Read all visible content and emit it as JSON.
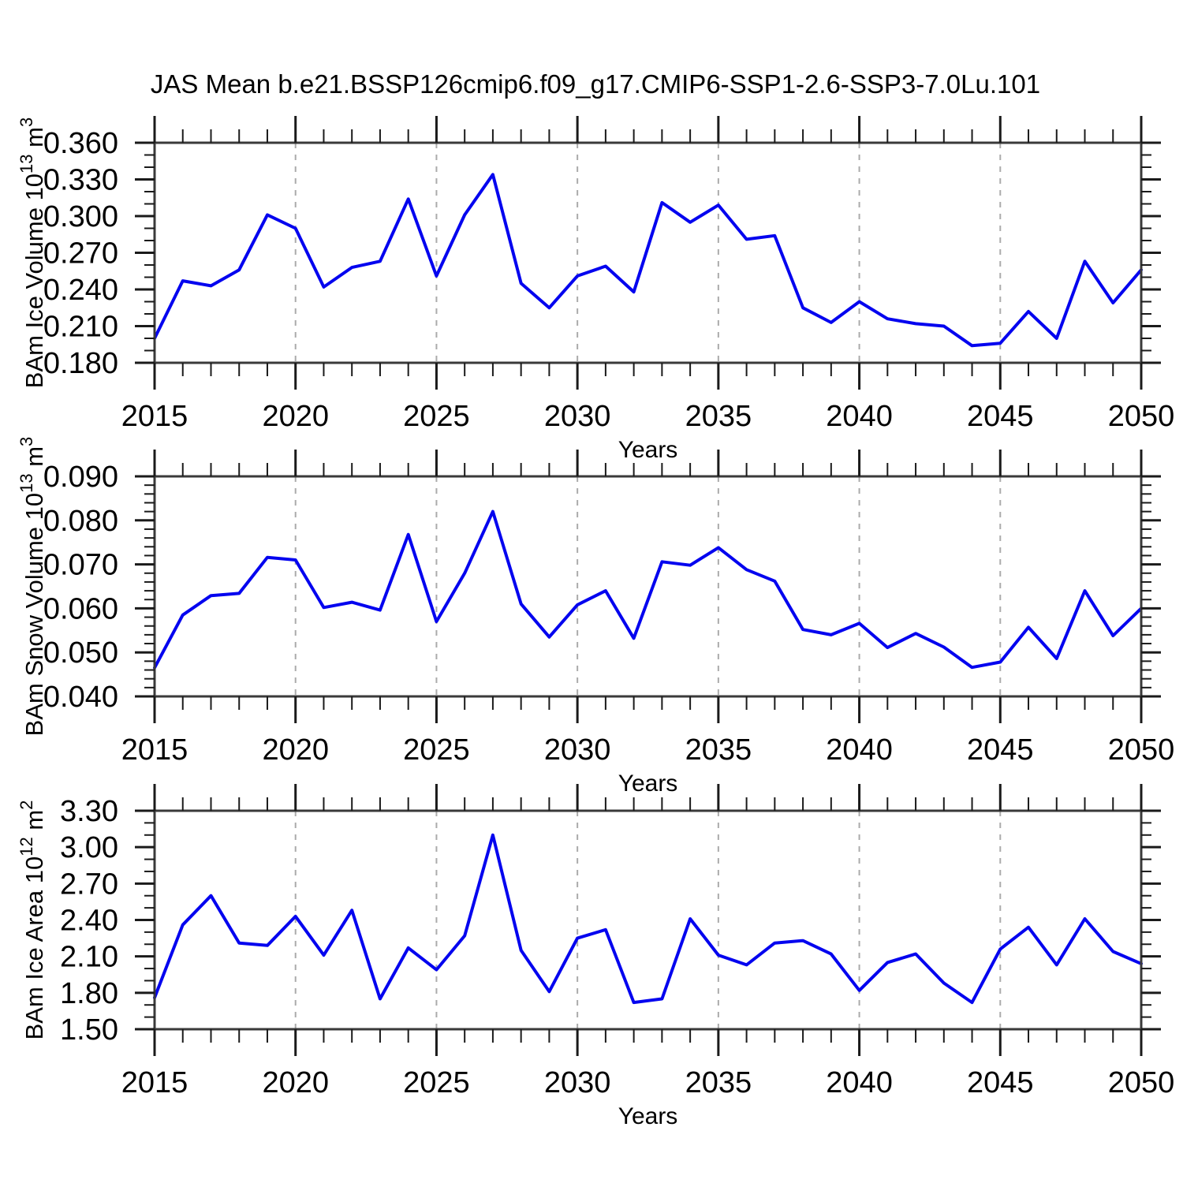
{
  "title": "JAS Mean b.e21.BSSP126cmip6.f09_g17.CMIP6-SSP1-2.6-SSP3-7.0Lu.101",
  "line_color": "#0404ef",
  "frame_color": "#3a3a3a",
  "tick_color": "#1a1a1a",
  "gridline_color": "#ababab",
  "chart_data": [
    {
      "type": "line",
      "name": "bam-ice-volume",
      "ylabel_parts": [
        {
          "t": "BAm Ice Volume 10"
        },
        {
          "t": "13",
          "sup": true
        },
        {
          "t": " m"
        },
        {
          "t": "3",
          "sup": true
        }
      ],
      "xlabel": "Years",
      "x": [
        2015,
        2016,
        2017,
        2018,
        2019,
        2020,
        2021,
        2022,
        2023,
        2024,
        2025,
        2026,
        2027,
        2028,
        2029,
        2030,
        2031,
        2032,
        2033,
        2034,
        2035,
        2036,
        2037,
        2038,
        2039,
        2040,
        2041,
        2042,
        2043,
        2044,
        2045,
        2046,
        2047,
        2048,
        2049,
        2050
      ],
      "values": [
        0.2,
        0.247,
        0.243,
        0.256,
        0.301,
        0.29,
        0.242,
        0.258,
        0.263,
        0.314,
        0.251,
        0.301,
        0.334,
        0.245,
        0.225,
        0.251,
        0.259,
        0.238,
        0.311,
        0.295,
        0.309,
        0.281,
        0.284,
        0.225,
        0.213,
        0.23,
        0.216,
        0.212,
        0.21,
        0.194,
        0.196,
        0.222,
        0.2,
        0.263,
        0.229,
        0.256
      ],
      "xlim": [
        2015,
        2050
      ],
      "ylim": [
        0.18,
        0.36
      ],
      "xtick_major_values": [
        2015,
        2020,
        2025,
        2030,
        2035,
        2040,
        2045,
        2050
      ],
      "xtick_labels": [
        "2015",
        "2020",
        "2025",
        "2030",
        "2035",
        "2040",
        "2045",
        "2050"
      ],
      "xtick_minor_step": 1,
      "ytick_major_values": [
        0.18,
        0.21,
        0.24,
        0.27,
        0.3,
        0.33,
        0.36
      ],
      "ytick_labels": [
        "0.180",
        "0.210",
        "0.240",
        "0.270",
        "0.300",
        "0.330",
        "0.360"
      ],
      "ytick_minor_step": 0.01,
      "gridline_x_values": [
        2020,
        2025,
        2030,
        2035,
        2040,
        2045
      ],
      "grid": "vertical-dashed",
      "legend": "none"
    },
    {
      "type": "line",
      "name": "bam-snow-volume",
      "ylabel_parts": [
        {
          "t": "BAm Snow Volume 10"
        },
        {
          "t": "13",
          "sup": true
        },
        {
          "t": " m"
        },
        {
          "t": "3",
          "sup": true
        }
      ],
      "xlabel": "Years",
      "x": [
        2015,
        2016,
        2017,
        2018,
        2019,
        2020,
        2021,
        2022,
        2023,
        2024,
        2025,
        2026,
        2027,
        2028,
        2029,
        2030,
        2031,
        2032,
        2033,
        2034,
        2035,
        2036,
        2037,
        2038,
        2039,
        2040,
        2041,
        2042,
        2043,
        2044,
        2045,
        2046,
        2047,
        2048,
        2049,
        2050
      ],
      "values": [
        0.0465,
        0.0585,
        0.0629,
        0.0634,
        0.0716,
        0.071,
        0.0602,
        0.0614,
        0.0596,
        0.0768,
        0.057,
        0.068,
        0.082,
        0.061,
        0.0535,
        0.0608,
        0.064,
        0.0532,
        0.0706,
        0.0698,
        0.0738,
        0.0688,
        0.0662,
        0.0552,
        0.054,
        0.0566,
        0.0511,
        0.0543,
        0.0512,
        0.0466,
        0.0478,
        0.0557,
        0.0486,
        0.064,
        0.0538,
        0.06
      ],
      "xlim": [
        2015,
        2050
      ],
      "ylim": [
        0.04,
        0.09
      ],
      "xtick_major_values": [
        2015,
        2020,
        2025,
        2030,
        2035,
        2040,
        2045,
        2050
      ],
      "xtick_labels": [
        "2015",
        "2020",
        "2025",
        "2030",
        "2035",
        "2040",
        "2045",
        "2050"
      ],
      "xtick_minor_step": 1,
      "ytick_major_values": [
        0.04,
        0.05,
        0.06,
        0.07,
        0.08,
        0.09
      ],
      "ytick_labels": [
        "0.040",
        "0.050",
        "0.060",
        "0.070",
        "0.080",
        "0.090"
      ],
      "ytick_minor_step": 0.002,
      "gridline_x_values": [
        2020,
        2025,
        2030,
        2035,
        2040,
        2045
      ],
      "grid": "vertical-dashed",
      "legend": "none"
    },
    {
      "type": "line",
      "name": "bam-ice-area",
      "ylabel_parts": [
        {
          "t": "BAm Ice Area 10"
        },
        {
          "t": "12",
          "sup": true
        },
        {
          "t": " m"
        },
        {
          "t": "2",
          "sup": true
        }
      ],
      "xlabel": "Years",
      "x": [
        2015,
        2016,
        2017,
        2018,
        2019,
        2020,
        2021,
        2022,
        2023,
        2024,
        2025,
        2026,
        2027,
        2028,
        2029,
        2030,
        2031,
        2032,
        2033,
        2034,
        2035,
        2036,
        2037,
        2038,
        2039,
        2040,
        2041,
        2042,
        2043,
        2044,
        2045,
        2046,
        2047,
        2048,
        2049,
        2050
      ],
      "values": [
        1.76,
        2.36,
        2.6,
        2.21,
        2.19,
        2.43,
        2.11,
        2.48,
        1.75,
        2.17,
        1.99,
        2.27,
        3.1,
        2.15,
        1.81,
        2.25,
        2.32,
        1.72,
        1.75,
        2.41,
        2.11,
        2.03,
        2.21,
        2.23,
        2.12,
        1.82,
        2.05,
        2.12,
        1.88,
        1.72,
        2.16,
        2.34,
        2.03,
        2.41,
        2.14,
        2.04
      ],
      "xlim": [
        2015,
        2050
      ],
      "ylim": [
        1.5,
        3.3
      ],
      "xtick_major_values": [
        2015,
        2020,
        2025,
        2030,
        2035,
        2040,
        2045,
        2050
      ],
      "xtick_labels": [
        "2015",
        "2020",
        "2025",
        "2030",
        "2035",
        "2040",
        "2045",
        "2050"
      ],
      "xtick_minor_step": 1,
      "ytick_major_values": [
        1.5,
        1.8,
        2.1,
        2.4,
        2.7,
        3.0,
        3.3
      ],
      "ytick_labels": [
        "1.50",
        "1.80",
        "2.10",
        "2.40",
        "2.70",
        "3.00",
        "3.30"
      ],
      "ytick_minor_step": 0.1,
      "gridline_x_values": [
        2020,
        2025,
        2030,
        2035,
        2040,
        2045
      ],
      "grid": "vertical-dashed",
      "legend": "none"
    }
  ]
}
